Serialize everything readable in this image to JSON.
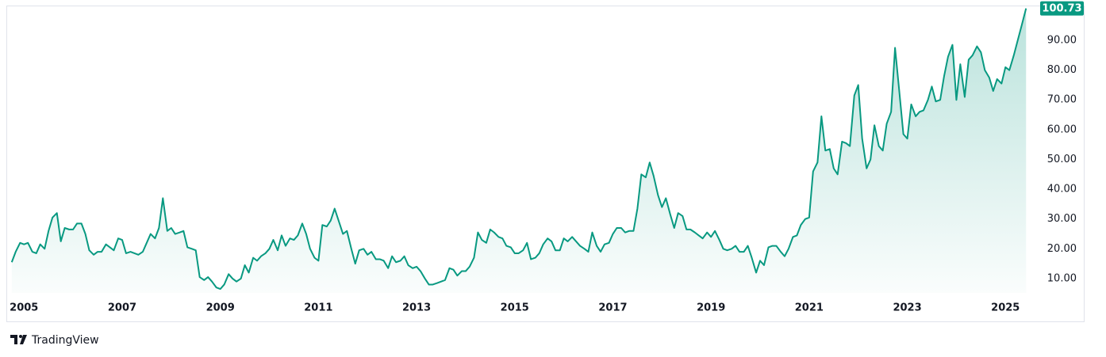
{
  "chart_data": {
    "type": "line",
    "x": [
      2004.75,
      2004.83,
      2004.92,
      2005.0,
      2005.08,
      2005.17,
      2005.25,
      2005.33,
      2005.42,
      2005.5,
      2005.58,
      2005.67,
      2005.75,
      2005.83,
      2005.92,
      2006.0,
      2006.08,
      2006.17,
      2006.25,
      2006.33,
      2006.42,
      2006.5,
      2006.58,
      2006.67,
      2006.75,
      2006.83,
      2006.92,
      2007.0,
      2007.08,
      2007.17,
      2007.25,
      2007.33,
      2007.42,
      2007.5,
      2007.58,
      2007.67,
      2007.75,
      2007.83,
      2007.92,
      2008.0,
      2008.08,
      2008.17,
      2008.25,
      2008.33,
      2008.42,
      2008.5,
      2008.58,
      2008.67,
      2008.75,
      2008.83,
      2008.92,
      2009.0,
      2009.08,
      2009.17,
      2009.25,
      2009.33,
      2009.42,
      2009.5,
      2009.58,
      2009.67,
      2009.75,
      2009.83,
      2009.92,
      2010.0,
      2010.08,
      2010.17,
      2010.25,
      2010.33,
      2010.42,
      2010.5,
      2010.58,
      2010.67,
      2010.75,
      2010.83,
      2010.92,
      2011.0,
      2011.08,
      2011.17,
      2011.25,
      2011.33,
      2011.42,
      2011.5,
      2011.58,
      2011.67,
      2011.75,
      2011.83,
      2011.92,
      2012.0,
      2012.08,
      2012.17,
      2012.25,
      2012.33,
      2012.42,
      2012.5,
      2012.58,
      2012.67,
      2012.75,
      2012.83,
      2012.92,
      2013.0,
      2013.08,
      2013.17,
      2013.25,
      2013.33,
      2013.42,
      2013.5,
      2013.58,
      2013.67,
      2013.75,
      2013.83,
      2013.92,
      2014.0,
      2014.08,
      2014.17,
      2014.25,
      2014.33,
      2014.42,
      2014.5,
      2014.58,
      2014.67,
      2014.75,
      2014.83,
      2014.92,
      2015.0,
      2015.08,
      2015.17,
      2015.25,
      2015.33,
      2015.42,
      2015.5,
      2015.58,
      2015.67,
      2015.75,
      2015.83,
      2015.92,
      2016.0,
      2016.08,
      2016.17,
      2016.25,
      2016.33,
      2016.42,
      2016.5,
      2016.58,
      2016.67,
      2016.75,
      2016.83,
      2016.92,
      2017.0,
      2017.08,
      2017.17,
      2017.25,
      2017.33,
      2017.42,
      2017.5,
      2017.58,
      2017.67,
      2017.75,
      2017.83,
      2017.92,
      2018.0,
      2018.08,
      2018.17,
      2018.25,
      2018.33,
      2018.42,
      2018.5,
      2018.58,
      2018.67,
      2018.75,
      2018.83,
      2018.92,
      2019.0,
      2019.08,
      2019.17,
      2019.25,
      2019.33,
      2019.42,
      2019.5,
      2019.58,
      2019.67,
      2019.75,
      2019.83,
      2019.92,
      2020.0,
      2020.08,
      2020.17,
      2020.25,
      2020.33,
      2020.42,
      2020.5,
      2020.58,
      2020.67,
      2020.75,
      2020.83,
      2020.92,
      2021.0,
      2021.08,
      2021.17,
      2021.25,
      2021.33,
      2021.42,
      2021.5,
      2021.58,
      2021.67,
      2021.75,
      2021.83,
      2021.92,
      2022.0,
      2022.08,
      2022.17,
      2022.25,
      2022.33,
      2022.42,
      2022.5,
      2022.58,
      2022.67,
      2022.75,
      2022.83,
      2022.92,
      2023.0,
      2023.08,
      2023.17,
      2023.25,
      2023.33,
      2023.42,
      2023.5,
      2023.58,
      2023.67,
      2023.75,
      2023.83,
      2023.92,
      2024.0,
      2024.08,
      2024.17,
      2024.25,
      2024.33,
      2024.42,
      2024.5,
      2024.58,
      2024.67,
      2024.75,
      2024.83,
      2024.92,
      2025.0,
      2025.08,
      2025.17,
      2025.25,
      2025.33,
      2025.42
    ],
    "series": [
      {
        "color": "#089981",
        "values": [
          15.5,
          19,
          22,
          21.5,
          22,
          19,
          18.5,
          21.5,
          20,
          26,
          30.5,
          32,
          22.5,
          27,
          26.5,
          26.5,
          28.5,
          28.5,
          25,
          19.5,
          18,
          19,
          19,
          21.5,
          20.5,
          19.5,
          23.5,
          23,
          18.5,
          19,
          18.5,
          18,
          19,
          22,
          25,
          23.5,
          27,
          37,
          26,
          27,
          25,
          25.5,
          26,
          20.5,
          20,
          19.5,
          10.5,
          9.5,
          10.5,
          9,
          7,
          6.5,
          8,
          11.5,
          10,
          9,
          10,
          14.5,
          12,
          17,
          16,
          17.5,
          18.5,
          20,
          23,
          19.5,
          24.5,
          21,
          23.5,
          23,
          24.5,
          28.5,
          25,
          20,
          17,
          16,
          28,
          27.5,
          29.5,
          33.5,
          29,
          25,
          26,
          20,
          15,
          19.5,
          20,
          18,
          19,
          16.5,
          16.5,
          16,
          13.5,
          17.5,
          15.5,
          16,
          17.5,
          14.5,
          13.5,
          14,
          12.5,
          10,
          8,
          8,
          8.5,
          9,
          9.5,
          13.5,
          13,
          11,
          12.5,
          12.5,
          14,
          17,
          25.5,
          23,
          22,
          26.5,
          25.5,
          24,
          23.5,
          21,
          20.5,
          18.5,
          18.5,
          19.5,
          22,
          16.5,
          17,
          18.5,
          21.5,
          23.5,
          22.5,
          19.5,
          19.5,
          23.5,
          22.5,
          24,
          22.5,
          21,
          20,
          19,
          25.5,
          21,
          19,
          21.5,
          22,
          25,
          27,
          27,
          25.5,
          26,
          26,
          33.5,
          45,
          44,
          49,
          44.5,
          38,
          34,
          37,
          31.5,
          27,
          32,
          31,
          26.5,
          26.5,
          25.5,
          24.5,
          23.5,
          25.5,
          24,
          26,
          23,
          20,
          19.5,
          20,
          21,
          19,
          19,
          21,
          17,
          12,
          16,
          14.5,
          20.5,
          21,
          21,
          19,
          17.5,
          20,
          24,
          24.5,
          28,
          30,
          30.5,
          46,
          49,
          64.5,
          53,
          53.5,
          47,
          45,
          56,
          55.5,
          54.5,
          71.5,
          75,
          57,
          47,
          50,
          61.5,
          54.5,
          53,
          62,
          66,
          87.5,
          74,
          58.5,
          57,
          68.5,
          64.5,
          66,
          66.5,
          70,
          74.5,
          69.5,
          70,
          78,
          84.5,
          88.5,
          70,
          82,
          71,
          83.5,
          85,
          88,
          86,
          80,
          77.5,
          73,
          77,
          75.5,
          81,
          80,
          85,
          90,
          95,
          100.73
        ]
      }
    ],
    "xlim": [
      2004.64,
      2025.61
    ],
    "xticks": [
      2005,
      2007,
      2009,
      2011,
      2013,
      2015,
      2017,
      2019,
      2021,
      2023,
      2025
    ],
    "ylim": [
      5.2,
      101.7
    ],
    "yticks": [
      {
        "value": 10,
        "label": "10.00"
      },
      {
        "value": 20,
        "label": "20.00"
      },
      {
        "value": 30,
        "label": "30.00"
      },
      {
        "value": 40,
        "label": "40.00"
      },
      {
        "value": 50,
        "label": "50.00"
      },
      {
        "value": 60,
        "label": "60.00"
      },
      {
        "value": 70,
        "label": "70.00"
      },
      {
        "value": 80,
        "label": "80.00"
      },
      {
        "value": 90,
        "label": "90.00"
      }
    ],
    "area": true
  },
  "footer": {
    "brand": "TradingView"
  }
}
